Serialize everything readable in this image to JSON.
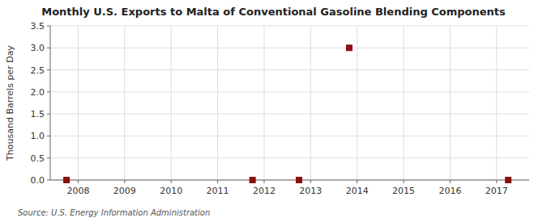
{
  "chart_data": {
    "type": "scatter",
    "title": "Monthly U.S. Exports to Malta of Conventional Gasoline Blending Components",
    "y_label": "Thousand Barrels per Day",
    "annotations": [
      "Source: U.S. Energy Information Administration"
    ],
    "x": [
      2007.75,
      2011.75,
      2012.75,
      2013.83,
      2017.25
    ],
    "values": [
      0.0,
      0.0,
      0.0,
      3.0,
      0.0
    ],
    "color": "#8B1010",
    "marker": "square",
    "xlim": [
      2007.4,
      2017.7
    ],
    "ylim": [
      0.0,
      3.5
    ],
    "xticks": [
      2008,
      2009,
      2010,
      2011,
      2012,
      2013,
      2014,
      2015,
      2016,
      2017
    ],
    "yticks": [
      {
        "value": 0.0,
        "label": "0.0"
      },
      0.5,
      {
        "value": 1.0,
        "label": "1.0"
      },
      1.5,
      {
        "value": 2.0,
        "label": "2.0"
      },
      2.5,
      {
        "value": 3.0,
        "label": "3.0"
      },
      3.5
    ],
    "grid": true
  }
}
